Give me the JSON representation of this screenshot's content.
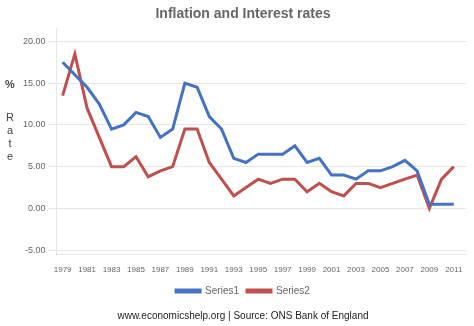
{
  "chart_data": {
    "type": "line",
    "title": "Inflation and Interest rates",
    "ylabel": [
      "%",
      "R\na\nt\ne"
    ],
    "annotations": [
      "www.economicshelp.org | Source: ONS Bank of England"
    ],
    "x": [
      1979,
      1980,
      1981,
      1982,
      1983,
      1984,
      1985,
      1986,
      1987,
      1988,
      1989,
      1990,
      1991,
      1992,
      1993,
      1994,
      1995,
      1996,
      1997,
      1998,
      1999,
      2000,
      2001,
      2002,
      2003,
      2004,
      2005,
      2006,
      2007,
      2008,
      2009,
      2010,
      2011
    ],
    "series": [
      {
        "name": "Series1",
        "color": "#4472C4",
        "values": [
          17.5,
          16.0,
          14.5,
          12.5,
          9.5,
          10.0,
          11.5,
          11.0,
          8.5,
          9.5,
          15.0,
          14.5,
          11.0,
          9.5,
          6.0,
          5.5,
          6.5,
          6.5,
          6.5,
          7.5,
          5.5,
          6.0,
          4.0,
          4.0,
          3.5,
          4.5,
          4.5,
          5.0,
          5.75,
          4.5,
          0.5,
          0.5,
          0.5
        ]
      },
      {
        "name": "Series2",
        "color": "#C0504D",
        "values": [
          13.5,
          18.5,
          12.0,
          8.5,
          5.0,
          5.0,
          6.2,
          3.8,
          4.5,
          5.0,
          9.5,
          9.5,
          5.5,
          3.5,
          1.5,
          2.5,
          3.5,
          3.0,
          3.5,
          3.5,
          2.0,
          3.0,
          2.0,
          1.5,
          3.0,
          3.0,
          2.5,
          3.0,
          3.5,
          4.0,
          0.0,
          3.5,
          5.0
        ]
      }
    ],
    "xlim": [
      1978.5,
      2012.0
    ],
    "xticks": [
      1979,
      1981,
      1983,
      1985,
      1987,
      1989,
      1991,
      1993,
      1995,
      1997,
      1999,
      2001,
      2003,
      2005,
      2007,
      2009,
      2011
    ],
    "ylim": [
      -5.5,
      21.5
    ],
    "yticks": [
      {
        "value": -5.0,
        "label": "-5.00"
      },
      {
        "value": 0.0,
        "label": "0.00"
      },
      {
        "value": 5.0,
        "label": "5.00"
      },
      {
        "value": 10.0,
        "label": "10.00"
      },
      {
        "value": 15.0,
        "label": "15.00"
      },
      {
        "value": 20.0,
        "label": "20.00"
      }
    ],
    "grid": "y",
    "legend": "bottom"
  }
}
